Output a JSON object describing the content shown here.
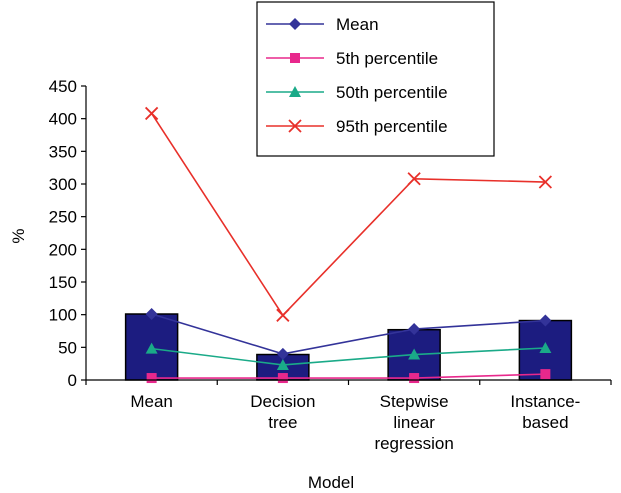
{
  "chart_data": {
    "type": "bar",
    "title": "",
    "xlabel": "Model",
    "ylabel": "%",
    "ylim": [
      0,
      450
    ],
    "yticks": [
      0,
      50,
      100,
      150,
      200,
      250,
      300,
      350,
      400,
      450
    ],
    "grid": false,
    "legend_position": "top",
    "categories": [
      [
        "Mean"
      ],
      [
        "Decision",
        "tree"
      ],
      [
        "Stepwise",
        "linear",
        "regression"
      ],
      [
        "Instance-",
        "based"
      ]
    ],
    "bars": {
      "values": [
        101,
        39,
        77,
        91
      ],
      "color": "#1c1c80"
    },
    "series": [
      {
        "name": "Mean",
        "marker": "diamond",
        "color": "#333399",
        "values": [
          101,
          40,
          78,
          91
        ]
      },
      {
        "name": "5th percentile",
        "marker": "square",
        "color": "#e8288c",
        "values": [
          3,
          3,
          3,
          9
        ]
      },
      {
        "name": "50th percentile",
        "marker": "triangle",
        "color": "#1aaa88",
        "values": [
          48,
          23,
          39,
          49
        ]
      },
      {
        "name": "95th percentile",
        "marker": "x",
        "color": "#e8302a",
        "values": [
          408,
          99,
          308,
          303
        ]
      }
    ]
  }
}
